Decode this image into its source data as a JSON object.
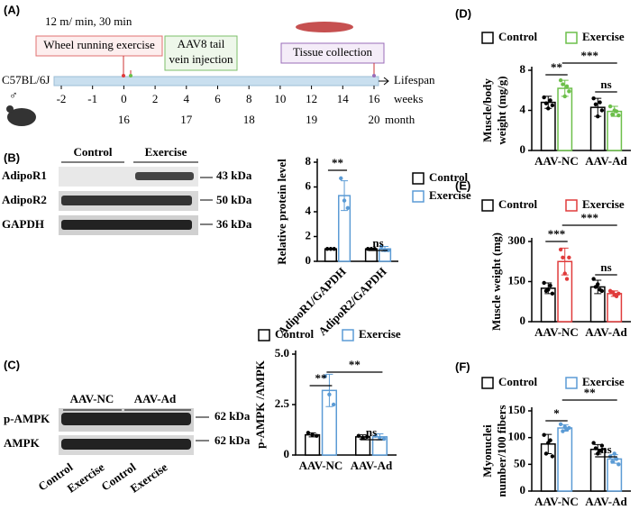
{
  "panels": [
    "(A)",
    "(B)",
    "(C)",
    "(D)",
    "(E)",
    "(F)"
  ],
  "timeline": {
    "protocol": "12 m/ min, 30 min",
    "boxes": [
      "Wheel running exercise",
      [
        "AAV8 tail",
        "vein injection"
      ],
      "Tissue collection"
    ],
    "strain": "C57BL/6J",
    "sex": "♂",
    "axis_label": "Lifespan",
    "unit": "weeks",
    "weeks": [
      -2,
      -1,
      0,
      2,
      4,
      6,
      8,
      10,
      12,
      14,
      16
    ],
    "months": [
      16,
      17,
      18,
      19,
      20
    ],
    "month_unit": "month"
  },
  "blots": [
    {
      "groups": [
        "Control",
        "Exercise"
      ],
      "rows": [
        "AdipoR1",
        "AdipoR2",
        "GAPDH"
      ],
      "sizes": [
        "43 kDa",
        "50 kDa",
        "36 kDa"
      ]
    },
    {
      "groups": [
        "AAV-NC",
        "AAV-Ad"
      ],
      "rows": [
        "p-AMPK",
        "AMPK"
      ],
      "sizes": [
        "62 kDa",
        "62 kDa"
      ],
      "lanes": [
        "Control",
        "Exercise",
        "Control",
        "Exercise"
      ]
    }
  ],
  "chart_data": [
    {
      "type": "bar",
      "panel": "(B)",
      "ylabel": "Relative protein level",
      "categories": [
        "AdipoR1/GAPDH",
        "AdipoR2/GAPDH"
      ],
      "ylim": [
        0,
        8
      ],
      "yticks": [
        0,
        2,
        4,
        6,
        8
      ],
      "series": [
        {
          "name": "Control",
          "color": "#000000",
          "values": [
            1,
            1
          ],
          "errors": [
            0,
            0.05
          ],
          "points": [
            [
              1,
              1,
              1
            ],
            [
              1,
              1,
              1
            ]
          ]
        },
        {
          "name": "Exercise",
          "color": "#5b9bd5",
          "values": [
            5.3,
            1.0
          ],
          "errors": [
            1.2,
            0.2
          ],
          "points": [
            [
              6.7,
              4.9,
              4.3
            ],
            [
              1.2,
              0.9,
              0.9
            ]
          ]
        }
      ],
      "annotations": [
        "**",
        "ns"
      ]
    },
    {
      "type": "bar",
      "panel": "(C)",
      "ylabel": "p-AMPK /AMPK",
      "categories": [
        "AAV-NC",
        "AAV-Ad"
      ],
      "ylim": [
        0,
        5
      ],
      "yticks": [
        0,
        2.5,
        {
          "value": 5,
          "label": "5.0"
        }
      ],
      "series": [
        {
          "name": "Control",
          "color": "#000000",
          "values": [
            1,
            0.9
          ],
          "errors": [
            0.1,
            0.1
          ],
          "points": [
            [
              1.1,
              1.0,
              0.95
            ],
            [
              0.95,
              0.85,
              0.9
            ]
          ]
        },
        {
          "name": "Exercise",
          "color": "#5b9bd5",
          "values": [
            3.2,
            0.9
          ],
          "errors": [
            0.8,
            0.15
          ],
          "points": [
            [
              3.9,
              3.0,
              2.5
            ],
            [
              0.95,
              0.85,
              0.8
            ]
          ]
        }
      ],
      "annotations": [
        "**",
        "ns",
        "**"
      ]
    },
    {
      "type": "bar",
      "panel": "(D)",
      "ylabel": [
        "Muscle/body",
        "weight (mg/g)"
      ],
      "categories": [
        "AAV-NC",
        "AAV-Ad"
      ],
      "ylim": [
        0,
        8
      ],
      "yticks": [
        0,
        4,
        8
      ],
      "series": [
        {
          "name": "Control",
          "color": "#000000",
          "values": [
            4.8,
            4.3
          ],
          "errors": [
            0.6,
            0.9
          ],
          "points": [
            [
              5.3,
              4.7,
              4.2,
              5.0,
              4.5
            ],
            [
              5.2,
              4.6,
              3.4,
              4.8,
              4.0
            ]
          ]
        },
        {
          "name": "Exercise",
          "color": "#6cbf4a",
          "values": [
            6.2,
            3.9
          ],
          "errors": [
            0.8,
            0.5
          ],
          "points": [
            [
              7.0,
              6.6,
              5.4,
              6.4,
              5.9
            ],
            [
              4.4,
              3.6,
              4.0,
              3.9,
              3.5
            ]
          ]
        }
      ],
      "annotations": [
        "**",
        "ns",
        "***"
      ]
    },
    {
      "type": "bar",
      "panel": "(E)",
      "ylabel": "Muscle weight (mg)",
      "categories": [
        "AAV-NC",
        "AAV-Ad"
      ],
      "ylim": [
        0,
        300
      ],
      "yticks": [
        0,
        150,
        300
      ],
      "series": [
        {
          "name": "Control",
          "color": "#000000",
          "values": [
            125,
            130
          ],
          "errors": [
            20,
            25
          ],
          "points": [
            [
              145,
              115,
              120,
              135,
              105
            ],
            [
              160,
              130,
              140,
              120,
              115
            ]
          ]
        },
        {
          "name": "Exercise",
          "color": "#e03b3b",
          "values": [
            225,
            105
          ],
          "errors": [
            50,
            10
          ],
          "points": [
            [
              270,
              240,
              180,
              160,
              240
            ],
            [
              115,
              110,
              100,
              95,
              105
            ]
          ]
        }
      ],
      "annotations": [
        "***",
        "ns",
        "***"
      ]
    },
    {
      "type": "bar",
      "panel": "(F)",
      "ylabel": [
        "Myonuclei",
        "number/100 fibers"
      ],
      "categories": [
        "AAV-NC",
        "AAV-Ad"
      ],
      "ylim": [
        0,
        150
      ],
      "yticks": [
        0,
        50,
        100,
        150
      ],
      "series": [
        {
          "name": "Control",
          "color": "#000000",
          "values": [
            88,
            78
          ],
          "errors": [
            18,
            9
          ],
          "points": [
            [
              105,
              70,
              90,
              95,
              65
            ],
            [
              90,
              80,
              70,
              75,
              85
            ]
          ]
        },
        {
          "name": "Exercise",
          "color": "#5b9bd5",
          "values": [
            118,
            60
          ],
          "errors": [
            6,
            8
          ],
          "points": [
            [
              125,
              112,
              120,
              115,
              118
            ],
            [
              65,
              55,
              70,
              60,
              50
            ]
          ]
        }
      ],
      "annotations": [
        "*",
        "ns",
        "**"
      ]
    }
  ]
}
